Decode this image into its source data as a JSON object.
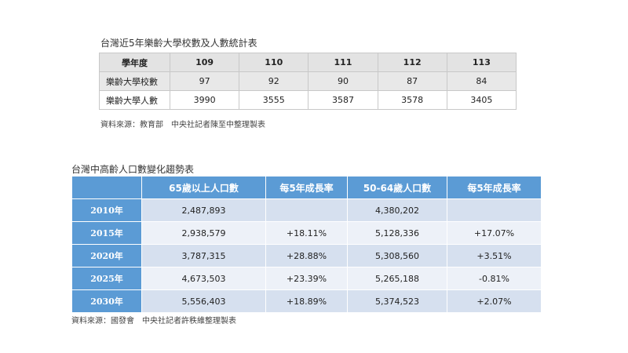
{
  "table1": {
    "title": "台灣近5年樂齡大學校數及人數統計表",
    "header": [
      "學年度",
      "109",
      "110",
      "111",
      "112",
      "113"
    ],
    "rows": [
      {
        "label": "樂齡大學校數",
        "values": [
          "97",
          "92",
          "90",
          "87",
          "84"
        ]
      },
      {
        "label": "樂齡大學人數",
        "values": [
          "3990",
          "3555",
          "3587",
          "3578",
          "3405"
        ]
      }
    ],
    "source": "資料來源：教育部　中央社記者陳至中整理製表"
  },
  "table2": {
    "title": "台灣中高齡人口數變化趨勢表",
    "header": [
      "",
      "65歲以上人口數",
      "每5年成長率",
      "50-64歲人口數",
      "每5年成長率"
    ],
    "rows": [
      {
        "year": "2010年",
        "values": [
          "2,487,893",
          "",
          "4,380,202",
          ""
        ]
      },
      {
        "year": "2015年",
        "values": [
          "2,938,579",
          "+18.11%",
          "5,128,336",
          "+17.07%"
        ]
      },
      {
        "year": "2020年",
        "values": [
          "3,787,315",
          "+28.88%",
          "5,308,560",
          "+3.51%"
        ]
      },
      {
        "year": "2025年",
        "values": [
          "4,673,503",
          "+23.39%",
          "5,265,188",
          "-0.81%"
        ]
      },
      {
        "year": "2030年",
        "values": [
          "5,556,403",
          "+18.89%",
          "5,374,523",
          "+2.07%"
        ]
      }
    ],
    "source": "資料來源：國發會　中央社記者許秩維整理製表"
  }
}
